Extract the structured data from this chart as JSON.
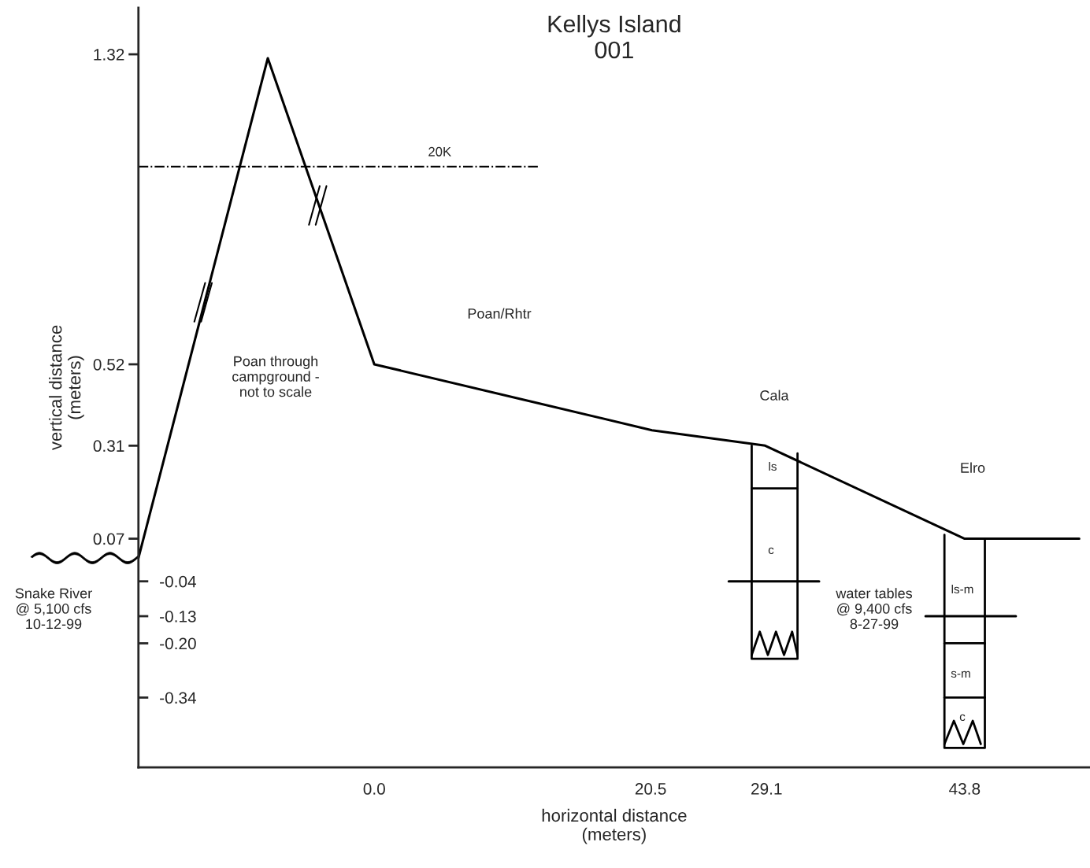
{
  "chart_data": {
    "type": "line",
    "title": "Kellys Island\n001",
    "xlabel": "horizontal distance\n(meters)",
    "ylabel": "vertical distance\n(meters)",
    "series": [
      {
        "color": "#000000",
        "x": [
          -17.5,
          -7.9,
          0,
          20.6,
          29.0,
          43.8,
          52.3
        ],
        "values": [
          0.02,
          1.31,
          0.52,
          0.35,
          0.31,
          0.07,
          0.07
        ],
        "line_style": "solid"
      },
      {
        "name": "20K",
        "color": "#000000",
        "x": [
          -17.5,
          12.3
        ],
        "values": [
          1.03,
          1.03
        ],
        "line_style": "dashed"
      },
      {
        "color": "#000000",
        "x": [
          26.3,
          33.0
        ],
        "values": [
          -0.04,
          -0.04
        ],
        "line_style": "solid"
      },
      {
        "color": "#000000",
        "x": [
          40.9,
          47.6
        ],
        "values": [
          -0.13,
          -0.13
        ],
        "line_style": "solid"
      }
    ],
    "xlim": [
      -17.5,
      53.1
    ],
    "ylim": [
      -0.52,
      1.44
    ],
    "xticks": [
      {
        "value": 0,
        "label": "0.0"
      },
      20.5,
      29.1,
      43.8
    ],
    "yticks": [
      1.32,
      0.52,
      0.31,
      0.07
    ],
    "y2lim": [
      -0.52,
      1.44
    ],
    "y2ticks": [
      -0.04,
      -0.13,
      {
        "value": -0.2,
        "label": "-0.20"
      },
      -0.34
    ],
    "annotations": [
      "Poan through\ncampground -\nnot to scale",
      "Poan/Rhtr",
      "Cala",
      "Elro",
      "Snake River\n@ 5,100 cfs\n10-12-99",
      "water tables\n@ 9,400 cfs\n8-27-99",
      "ls",
      "c",
      "ls-m",
      "s-m",
      "c"
    ],
    "grid": false,
    "legend": false
  }
}
